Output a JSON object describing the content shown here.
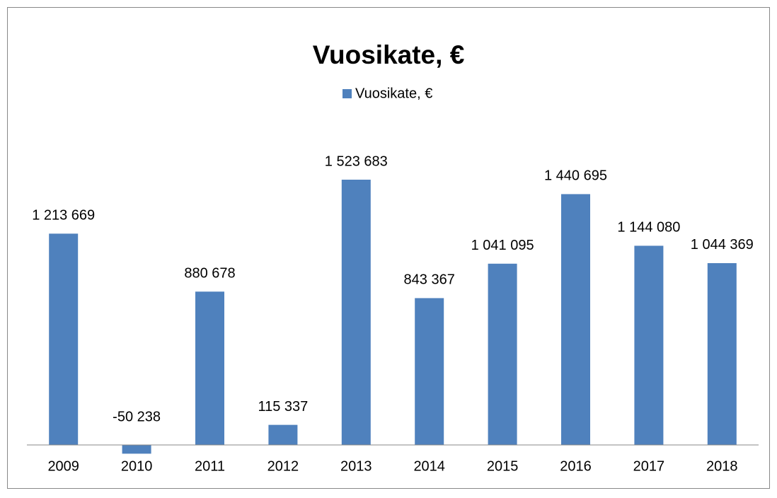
{
  "chart_data": {
    "type": "bar",
    "title": "Vuosikate, €",
    "series": [
      {
        "name": "Vuosikate, €",
        "color": "#4f81bd",
        "values": [
          1213669,
          -50238,
          880678,
          115337,
          1523683,
          843367,
          1041095,
          1440695,
          1144080,
          1044369
        ],
        "value_labels": [
          "1 213 669",
          "-50 238",
          "880 678",
          "115 337",
          "1 523 683",
          "843 367",
          "1 041 095",
          "1 440 695",
          "1 144 080",
          "1 044 369"
        ]
      }
    ],
    "categories": [
      "2009",
      "2010",
      "2011",
      "2012",
      "2013",
      "2014",
      "2015",
      "2016",
      "2017",
      "2018"
    ],
    "legend": "top"
  }
}
